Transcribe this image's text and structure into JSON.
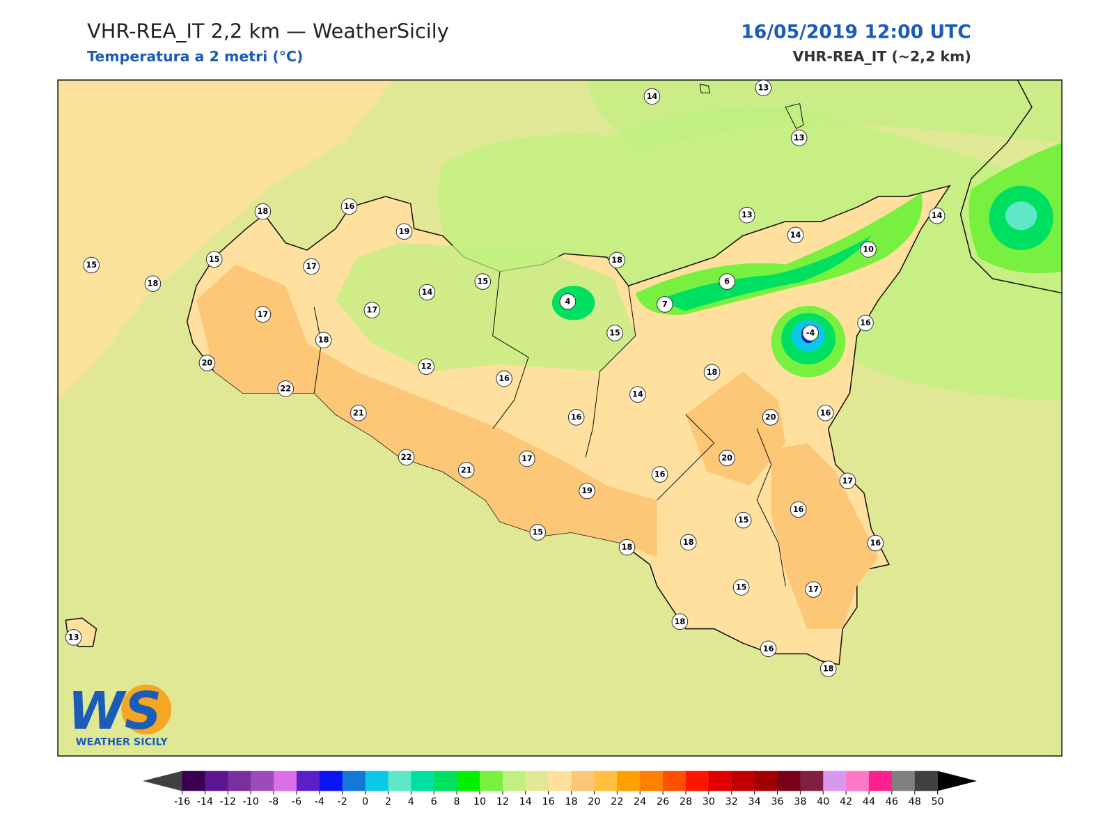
{
  "header": {
    "title": "VHR-REA_IT 2,2 km — WeatherSicily",
    "subtitle": "Temperatura a 2 metri (°C)",
    "datetime": "16/05/2019 12:00 UTC",
    "model": "VHR-REA_IT (~2,2 km)"
  },
  "map": {
    "stations": [
      14,
      13,
      13,
      18,
      16,
      19,
      15,
      15,
      17,
      18,
      17,
      17,
      14,
      15,
      4,
      18,
      13,
      14,
      14,
      10,
      6,
      7,
      15,
      -4,
      16,
      18,
      20,
      12,
      16,
      22,
      21,
      18,
      14,
      16,
      20,
      16,
      22,
      21,
      17,
      20,
      16,
      19,
      17,
      16,
      15,
      15,
      18,
      18,
      16,
      15,
      17,
      18,
      13,
      16,
      18
    ]
  },
  "colorbar": {
    "ticks": [
      -16,
      -14,
      -12,
      -10,
      -8,
      -6,
      -4,
      -2,
      0,
      2,
      4,
      6,
      8,
      10,
      12,
      14,
      16,
      18,
      20,
      22,
      24,
      26,
      28,
      30,
      32,
      34,
      36,
      38,
      40,
      42,
      44,
      46,
      48,
      50
    ],
    "colors": [
      "#3a0050",
      "#5c1490",
      "#7a2fa0",
      "#9c4cb8",
      "#dd6eea",
      "#5a1fc8",
      "#0a14f0",
      "#1478d8",
      "#0ac8e6",
      "#5ee8c8",
      "#00e0a0",
      "#00e060",
      "#00f000",
      "#78f040",
      "#c0f080",
      "#e0e896",
      "#ffe09e",
      "#fcc878",
      "#ffc040",
      "#ffa000",
      "#ff8000",
      "#ff5000",
      "#ff1400",
      "#e00000",
      "#c00000",
      "#a00000",
      "#780018",
      "#802040",
      "#d898f0",
      "#ff78c8",
      "#ff2090",
      "#808080",
      "#404040"
    ],
    "under_color": "#404040",
    "over_color": "#000000"
  },
  "logo": {
    "mark": "WS",
    "name": "WEATHER SICILY"
  }
}
